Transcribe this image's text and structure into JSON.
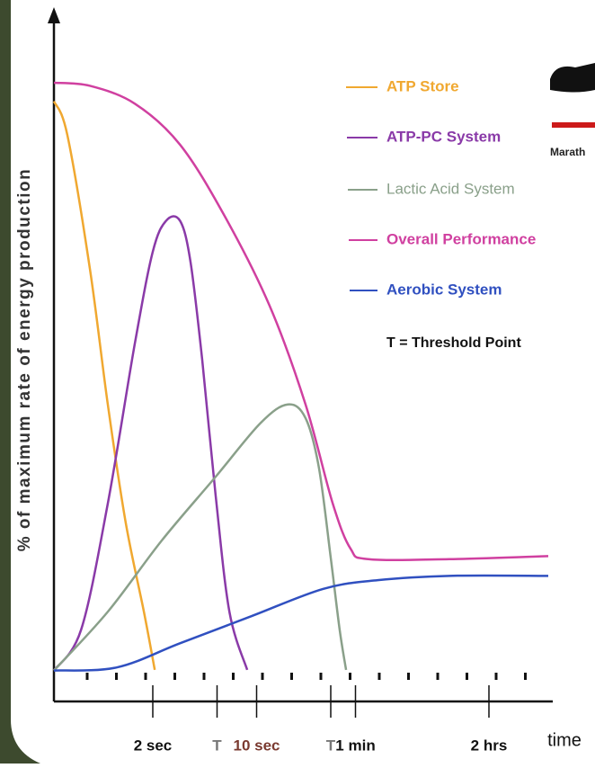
{
  "chart_data": {
    "type": "line",
    "ylabel": "% of maximum rate of energy production",
    "xlabel": "time",
    "xlim": [
      0,
      100
    ],
    "ylim": [
      0,
      100
    ],
    "xticks": [
      {
        "value": 20,
        "label": "2 sec"
      },
      {
        "value": 33,
        "label": "T"
      },
      {
        "value": 41,
        "label": "10 sec"
      },
      {
        "value": 56,
        "label": "T"
      },
      {
        "value": 61,
        "label": "1 min"
      },
      {
        "value": 88,
        "label": "2 hrs"
      }
    ],
    "xtick_colors": [
      "#111111",
      "#777777",
      "#7a3a30",
      "#777777",
      "#111111",
      "#111111"
    ],
    "grid": false,
    "series": [
      {
        "name": "ATP Store",
        "color": "#f0a830",
        "x": [
          0,
          2.7,
          7.3,
          10.9,
          14.5,
          18.2,
          20.4
        ],
        "values": [
          97,
          91.6,
          69.8,
          48,
          29,
          14.5,
          5.1
        ]
      },
      {
        "name": "ATP-PC System",
        "color": "#8a3aa8",
        "x": [
          0,
          5.5,
          10.9,
          16.4,
          20,
          22.7,
          25.5,
          27.6,
          30,
          32.7,
          35.5,
          39.1
        ],
        "values": [
          5,
          11.6,
          32,
          58,
          72.7,
          77.7,
          77.7,
          71.2,
          55.2,
          33.4,
          14.5,
          5.1
        ]
      },
      {
        "name": "Lactic Acid System",
        "color": "#8aa08a",
        "x": [
          0,
          10.9,
          21.8,
          32.7,
          41.8,
          47.3,
          50.9,
          53.6,
          56,
          57.8,
          59.1
        ],
        "values": [
          5,
          14.5,
          26,
          36.3,
          45,
          48,
          45.8,
          37.8,
          23.2,
          11.6,
          5.1
        ]
      },
      {
        "name": "Overall Performance",
        "color": "#d040a0",
        "x": [
          0,
          7.3,
          16.4,
          25.5,
          34.5,
          43.6,
          50.9,
          56.4,
          60,
          63.6,
          80,
          100
        ],
        "values": [
          100,
          99.5,
          96.6,
          90,
          78.5,
          64,
          48,
          32,
          24.7,
          23,
          23,
          23.5
        ]
      },
      {
        "name": "Aerobic System",
        "color": "#3050c0",
        "x": [
          0,
          12.7,
          25.5,
          40,
          54.5,
          65.5,
          80,
          100
        ],
        "values": [
          5,
          5.5,
          9.4,
          13.8,
          18.2,
          19.6,
          20.3,
          20.3
        ]
      }
    ],
    "note": "T = Threshold Point",
    "corner_label": "Marath"
  }
}
